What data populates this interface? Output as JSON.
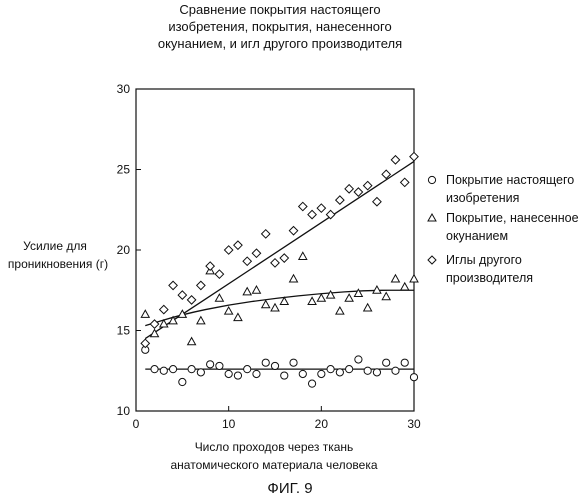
{
  "figure_label": "ФИГ. 9",
  "chart_data": {
    "type": "scatter",
    "title_lines": [
      "Сравнение покрытия настоящего",
      "изобретения, покрытия, нанесенного",
      "окунанием, и игл другого производителя"
    ],
    "xlabel_lines": [
      "Число проходов через ткань",
      "анатомического материала человека"
    ],
    "ylabel_lines": [
      "Усилие для",
      "проникновения (г)"
    ],
    "xlim": [
      0,
      30
    ],
    "ylim": [
      10,
      30
    ],
    "xticks": [
      0,
      10,
      20,
      30
    ],
    "yticks": [
      10,
      15,
      20,
      25,
      30
    ],
    "grid": false,
    "legend_position": "right",
    "series": [
      {
        "name_lines": [
          "Покрытие настоящего",
          "изобретения"
        ],
        "marker": "circle",
        "points": [
          [
            1,
            13.8
          ],
          [
            2,
            12.6
          ],
          [
            3,
            12.5
          ],
          [
            4,
            12.6
          ],
          [
            5,
            11.8
          ],
          [
            6,
            12.6
          ],
          [
            7,
            12.4
          ],
          [
            8,
            12.9
          ],
          [
            9,
            12.8
          ],
          [
            10,
            12.3
          ],
          [
            11,
            12.2
          ],
          [
            12,
            12.6
          ],
          [
            13,
            12.3
          ],
          [
            14,
            13.0
          ],
          [
            15,
            12.8
          ],
          [
            16,
            12.2
          ],
          [
            17,
            13.0
          ],
          [
            18,
            12.3
          ],
          [
            19,
            11.7
          ],
          [
            20,
            12.3
          ],
          [
            21,
            12.6
          ],
          [
            22,
            12.4
          ],
          [
            23,
            12.6
          ],
          [
            24,
            13.2
          ],
          [
            25,
            12.5
          ],
          [
            26,
            12.4
          ],
          [
            27,
            13.0
          ],
          [
            28,
            12.5
          ],
          [
            29,
            13.0
          ],
          [
            30,
            12.1
          ]
        ],
        "trend": [
          [
            1,
            12.6
          ],
          [
            30,
            12.6
          ]
        ]
      },
      {
        "name_lines": [
          "Покрытие, нанесенное",
          "окунанием"
        ],
        "marker": "triangle",
        "points": [
          [
            1,
            16.0
          ],
          [
            2,
            14.8
          ],
          [
            3,
            15.4
          ],
          [
            4,
            15.6
          ],
          [
            5,
            16.0
          ],
          [
            6,
            14.3
          ],
          [
            7,
            15.6
          ],
          [
            8,
            18.7
          ],
          [
            9,
            17.0
          ],
          [
            10,
            16.2
          ],
          [
            11,
            15.8
          ],
          [
            12,
            17.4
          ],
          [
            13,
            17.5
          ],
          [
            14,
            16.6
          ],
          [
            15,
            16.4
          ],
          [
            16,
            16.8
          ],
          [
            17,
            18.2
          ],
          [
            18,
            19.6
          ],
          [
            19,
            16.8
          ],
          [
            20,
            17.0
          ],
          [
            21,
            17.2
          ],
          [
            22,
            16.2
          ],
          [
            23,
            17.0
          ],
          [
            24,
            17.3
          ],
          [
            25,
            16.4
          ],
          [
            26,
            17.5
          ],
          [
            27,
            17.1
          ],
          [
            28,
            18.2
          ],
          [
            29,
            17.7
          ],
          [
            30,
            18.2
          ]
        ],
        "trend": [
          [
            1,
            15.3
          ],
          [
            5,
            16.0
          ],
          [
            10,
            16.6
          ],
          [
            15,
            17.0
          ],
          [
            20,
            17.3
          ],
          [
            25,
            17.5
          ],
          [
            30,
            17.5
          ]
        ]
      },
      {
        "name_lines": [
          "Иглы другого",
          "производителя"
        ],
        "marker": "diamond",
        "points": [
          [
            1,
            14.2
          ],
          [
            2,
            15.4
          ],
          [
            3,
            16.3
          ],
          [
            4,
            17.8
          ],
          [
            5,
            17.2
          ],
          [
            6,
            16.9
          ],
          [
            7,
            17.8
          ],
          [
            8,
            19.0
          ],
          [
            9,
            18.5
          ],
          [
            10,
            20.0
          ],
          [
            11,
            20.3
          ],
          [
            12,
            19.3
          ],
          [
            13,
            19.8
          ],
          [
            14,
            21.0
          ],
          [
            15,
            19.2
          ],
          [
            16,
            19.5
          ],
          [
            17,
            21.2
          ],
          [
            18,
            22.7
          ],
          [
            19,
            22.2
          ],
          [
            20,
            22.6
          ],
          [
            21,
            22.2
          ],
          [
            22,
            23.1
          ],
          [
            23,
            23.8
          ],
          [
            24,
            23.6
          ],
          [
            25,
            24.0
          ],
          [
            26,
            23.0
          ],
          [
            27,
            24.7
          ],
          [
            28,
            25.6
          ],
          [
            29,
            24.2
          ],
          [
            30,
            25.8
          ]
        ],
        "trend": [
          [
            1,
            14.5
          ],
          [
            5,
            16.0
          ],
          [
            10,
            17.9
          ],
          [
            15,
            19.8
          ],
          [
            20,
            21.7
          ],
          [
            25,
            23.6
          ],
          [
            30,
            25.5
          ]
        ]
      }
    ]
  }
}
